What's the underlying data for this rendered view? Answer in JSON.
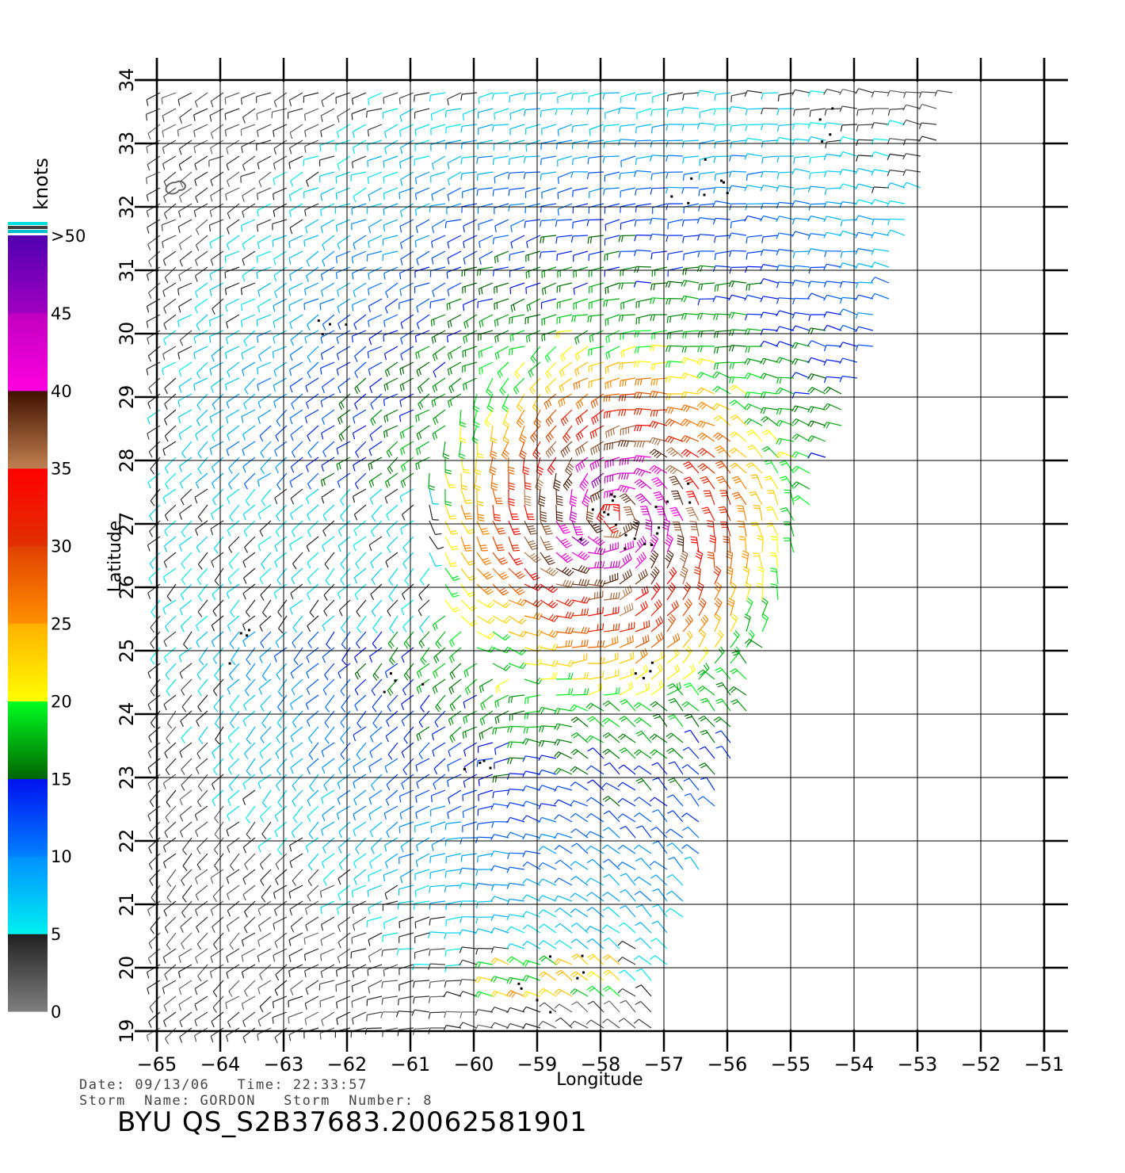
{
  "chart_data": {
    "type": "wind-vector-map",
    "xlabel": "Longitude",
    "ylabel": "Latitude",
    "x_ticks": [
      -65,
      -64,
      -63,
      -62,
      -61,
      -60,
      -59,
      -58,
      -57,
      -56,
      -55,
      -54,
      -53,
      -52,
      -51
    ],
    "y_ticks": [
      19,
      20,
      21,
      22,
      23,
      24,
      25,
      26,
      27,
      28,
      29,
      30,
      31,
      32,
      33,
      34
    ],
    "xlim": [
      -65,
      -51
    ],
    "ylim": [
      19,
      34
    ],
    "grid": true,
    "swath_east_edge": [
      [
        -52.3,
        34
      ],
      [
        -53.0,
        32
      ],
      [
        -53.6,
        30
      ],
      [
        -54.4,
        28
      ],
      [
        -55.1,
        26
      ],
      [
        -55.7,
        24
      ],
      [
        -56.3,
        22
      ],
      [
        -56.9,
        20
      ],
      [
        -57.2,
        19
      ]
    ],
    "storm_center": {
      "lon": -57.8,
      "lat": 27.1
    },
    "colorbar": {
      "unit": "knots",
      "ticks": [
        "0",
        "5",
        "10",
        "15",
        "20",
        "25",
        "30",
        "35",
        "40",
        "45",
        ">50"
      ],
      "colors": [
        {
          "range": [
            0,
            5
          ],
          "from": "#808080",
          "to": "#202020"
        },
        {
          "range": [
            5,
            10
          ],
          "from": "#00f0f0",
          "to": "#0090ff"
        },
        {
          "range": [
            10,
            15
          ],
          "from": "#0080ff",
          "to": "#0010f0"
        },
        {
          "range": [
            15,
            20
          ],
          "from": "#006400",
          "to": "#00ff20"
        },
        {
          "range": [
            20,
            25
          ],
          "from": "#ffff00",
          "to": "#ffb000"
        },
        {
          "range": [
            25,
            30
          ],
          "from": "#ff9000",
          "to": "#e04000"
        },
        {
          "range": [
            30,
            35
          ],
          "from": "#e03000",
          "to": "#ff0000"
        },
        {
          "range": [
            35,
            40
          ],
          "from": "#c08050",
          "to": "#401000"
        },
        {
          "range": [
            40,
            45
          ],
          "from": "#ff00e0",
          "to": "#c000c0"
        },
        {
          "range": [
            45,
            50
          ],
          "from": "#a000c0",
          "to": "#5000b0"
        }
      ]
    }
  },
  "footer": {
    "date_line": "Date: 09/13/06   Time: 22:33:57",
    "storm_line": "Storm  Name: GORDON   Storm  Number: 8",
    "product": "BYU  QS_S2B37683.20062581901"
  }
}
